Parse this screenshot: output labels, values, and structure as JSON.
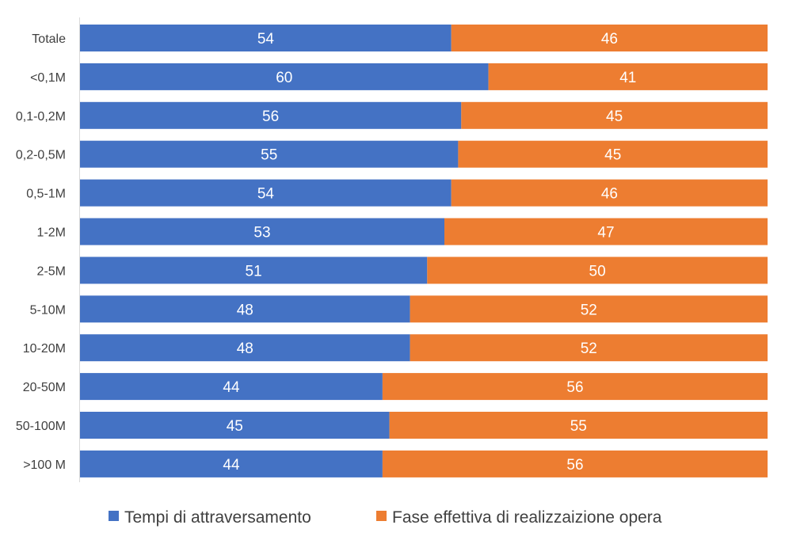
{
  "chart_data": {
    "type": "bar",
    "orientation": "horizontal",
    "stacked": true,
    "categories": [
      "Totale",
      "<0,1M",
      "0,1-0,2M",
      "0,2-0,5M",
      "0,5-1M",
      "1-2M",
      "2-5M",
      "5-10M",
      "10-20M",
      "20-50M",
      "50-100M",
      ">100 M"
    ],
    "series": [
      {
        "name": "Tempi di attraversamento",
        "color": "#4472C4",
        "values": [
          54,
          60,
          56,
          55,
          54,
          53,
          51,
          48,
          48,
          44,
          45,
          44
        ]
      },
      {
        "name": "Fase effettiva di realizzaizione opera",
        "color": "#ED7D31",
        "values": [
          46,
          41,
          45,
          45,
          46,
          47,
          50,
          52,
          52,
          56,
          55,
          56
        ]
      }
    ],
    "data_labels": true,
    "grid": false,
    "legend_position": "bottom"
  }
}
